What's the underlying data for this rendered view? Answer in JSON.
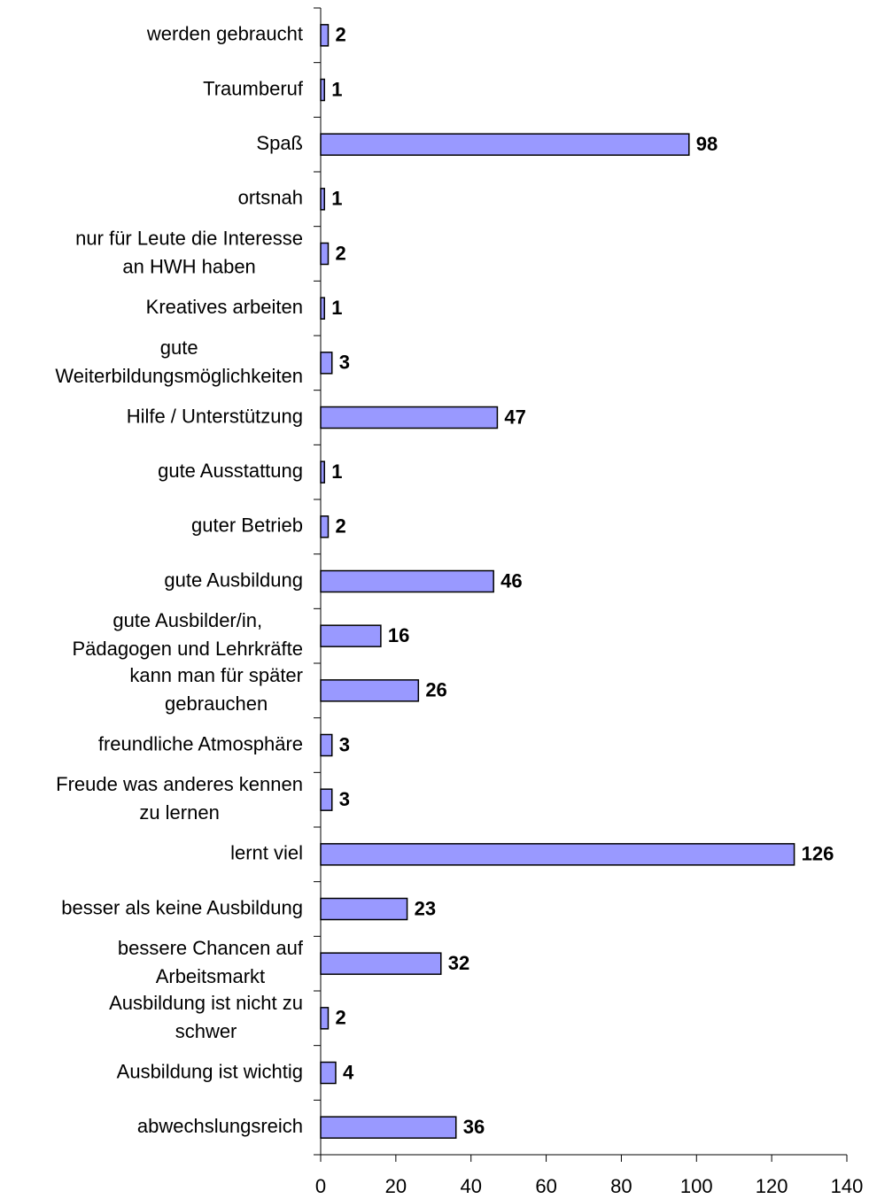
{
  "chart_data": {
    "type": "bar",
    "orientation": "horizontal",
    "categories": [
      "werden gebraucht",
      "Traumberuf",
      "Spaß",
      "ortsnah",
      "nur für Leute die Interesse\nan HWH haben",
      "Kreatives arbeiten",
      "gute\nWeiterbildungsmöglichkeiten",
      "Hilfe / Unterstützung",
      "gute Ausstattung",
      "guter Betrieb",
      "gute Ausbildung",
      "gute Ausbilder/in,\nPädagogen und Lehrkräfte",
      "kann man für später\ngebrauchen",
      "freundliche Atmosphäre",
      "Freude was anderes kennen\nzu lernen",
      "lernt viel",
      "besser als keine Ausbildung",
      "bessere Chancen auf\nArbeitsmarkt",
      "Ausbildung ist nicht zu\nschwer",
      "Ausbildung ist wichtig",
      "abwechslungsreich"
    ],
    "values": [
      2,
      1,
      98,
      1,
      2,
      1,
      3,
      47,
      1,
      2,
      46,
      16,
      26,
      3,
      3,
      126,
      23,
      32,
      2,
      4,
      36
    ],
    "color": "#9999ff",
    "xlim": [
      0,
      140
    ],
    "xticks": [
      0,
      20,
      40,
      60,
      80,
      100,
      120,
      140
    ],
    "grid": false
  }
}
